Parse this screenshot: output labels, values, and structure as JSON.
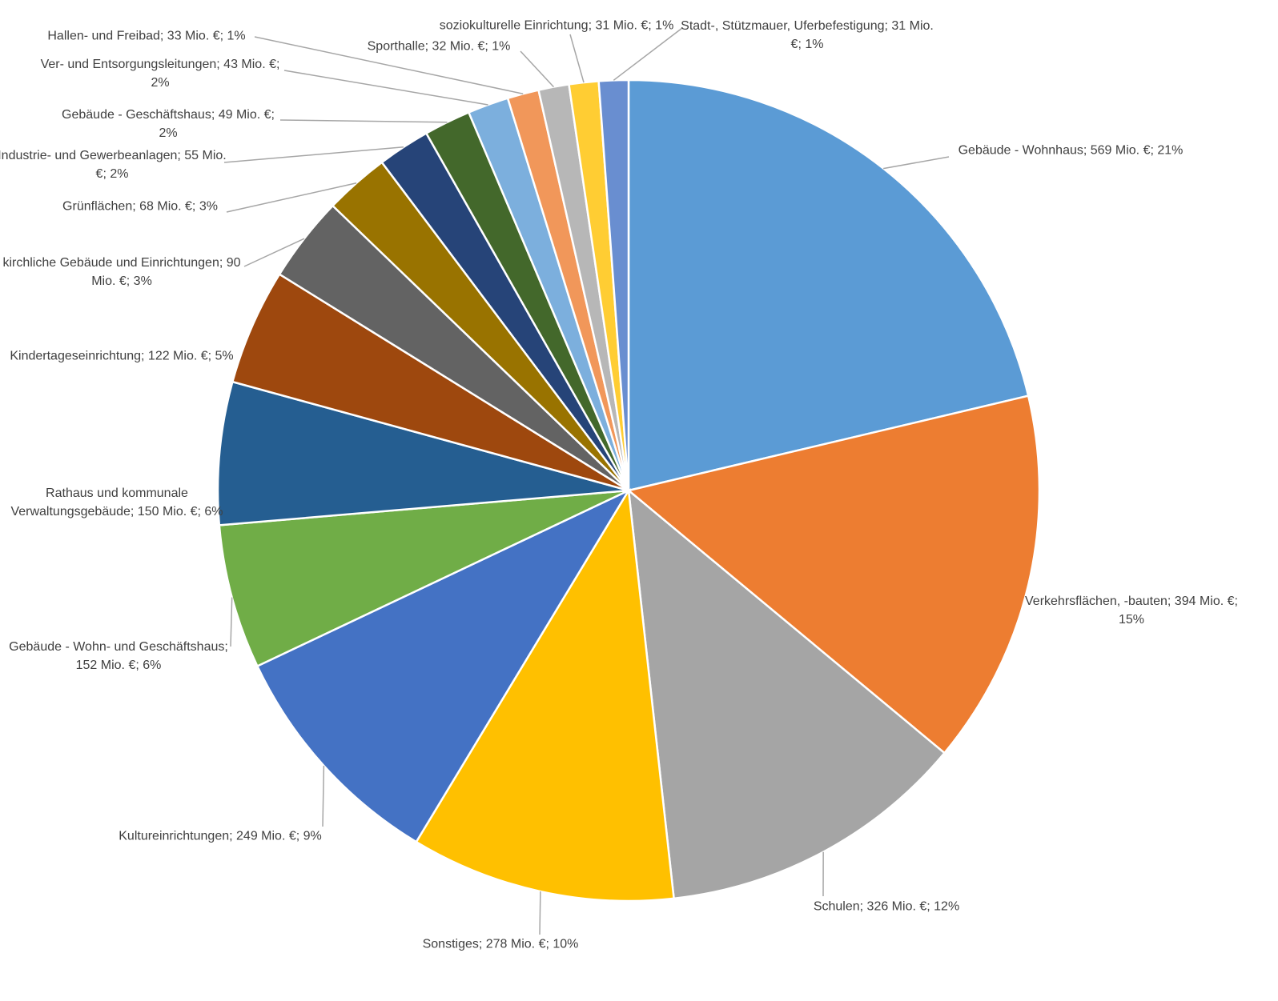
{
  "chart_data": {
    "type": "pie",
    "categories": [
      "Gebäude - Wohnhaus",
      "Verkehrsflächen, -bauten",
      "Schulen",
      "Sonstiges",
      "Kultureinrichtungen",
      "Gebäude - Wohn- und Geschäftshaus",
      "Rathaus und kommunale Verwaltungsgebäude",
      "Kindertageseinrichtung",
      "kirchliche Gebäude und Einrichtungen",
      "Grünflächen",
      "Industrie- und Gewerbeanlagen",
      "Gebäude - Geschäftshaus",
      "Ver- und Entsorgungsleitungen",
      "Hallen- und Freibad",
      "Sporthalle",
      "soziokulturelle Einrichtung",
      "Stadt-, Stützmauer, Uferbefestigung"
    ],
    "values": [
      569,
      394,
      326,
      278,
      249,
      152,
      150,
      122,
      90,
      68,
      55,
      49,
      43,
      33,
      32,
      31,
      31
    ],
    "value_labels": [
      "569 Mio. €",
      "394 Mio. €",
      "326 Mio. €",
      "278 Mio. €",
      "249 Mio. €",
      "152 Mio. €",
      "150 Mio. €",
      "122 Mio. €",
      "90 Mio. €",
      "68 Mio. €",
      "55 Mio. €",
      "49 Mio. €",
      "43 Mio. €",
      "33 Mio. €",
      "32 Mio. €",
      "31 Mio. €",
      "31 Mio. €"
    ],
    "percent_labels": [
      "21%",
      "15%",
      "12%",
      "10%",
      "9%",
      "6%",
      "6%",
      "5%",
      "3%",
      "3%",
      "2%",
      "2%",
      "2%",
      "1%",
      "1%",
      "1%",
      "1%"
    ],
    "label_separator": "; ",
    "colors": [
      "#5b9bd5",
      "#ed7d31",
      "#a5a5a5",
      "#ffc000",
      "#4472c4",
      "#70ad47",
      "#255e91",
      "#9e480e",
      "#636363",
      "#997300",
      "#264478",
      "#43682b",
      "#7cafdd",
      "#f1975a",
      "#b7b7b7",
      "#ffcd33",
      "#698ed0"
    ]
  }
}
